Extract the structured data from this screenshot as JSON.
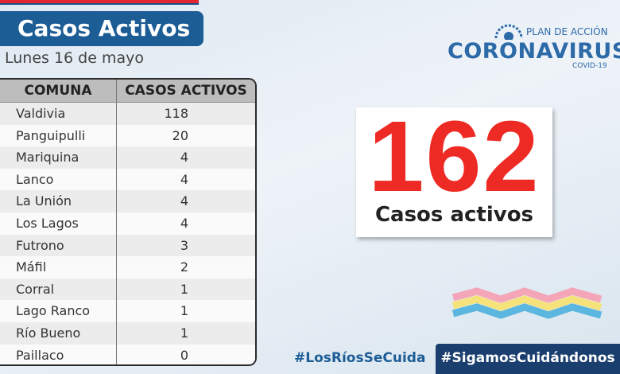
{
  "header": {
    "title": "Casos Activos",
    "date": "Lunes 16 de mayo"
  },
  "logo": {
    "plan": "PLAN DE ACCIÓN",
    "name": "CORONAVIRUS",
    "sub": "COVID-19"
  },
  "table": {
    "columns": [
      "COMUNA",
      "CASOS ACTIVOS"
    ],
    "rows": [
      [
        "Valdivia",
        118
      ],
      [
        "Panguipulli",
        20
      ],
      [
        "Mariquina",
        4
      ],
      [
        "Lanco",
        4
      ],
      [
        "La Unión",
        4
      ],
      [
        "Los Lagos",
        4
      ],
      [
        "Futrono",
        3
      ],
      [
        "Máfil",
        2
      ],
      [
        "Corral",
        1
      ],
      [
        "Lago Ranco",
        1
      ],
      [
        "Río Bueno",
        1
      ],
      [
        "Paillaco",
        0
      ]
    ]
  },
  "total": {
    "value": 162,
    "label": "Casos activos"
  },
  "hashtags": [
    "#LosRíosSeCuida",
    "#SigamosCuidándonos"
  ]
}
